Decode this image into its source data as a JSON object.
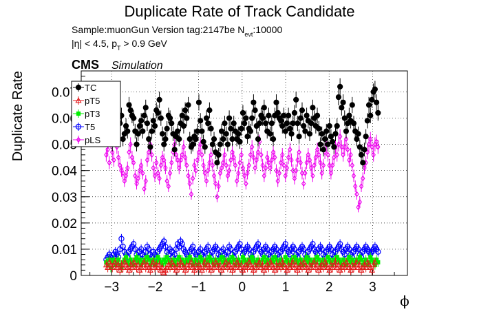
{
  "chart_data": {
    "type": "scatter",
    "title": "Duplicate Rate of Track Candidate",
    "info": {
      "sample_line_prefix": "Sample:muonGun   Version tag:2147be  N",
      "sample_line_subscript": "evt",
      "sample_line_suffix": ":10000",
      "cut_line_prefix": "|η| < 4.5, p",
      "cut_line_subscript": "T",
      "cut_line_suffix": " > 0.9 GeV"
    },
    "cms_label": "CMS",
    "simulation_label": "Simulation",
    "xlabel": "ϕ",
    "ylabel": "Duplicate Rate",
    "xlim": [
      -3.7,
      3.8
    ],
    "ylim": [
      0,
      0.078
    ],
    "x_ticks": [
      -3,
      -2,
      -1,
      0,
      1,
      2,
      3
    ],
    "x_tick_labels": [
      "−3",
      "−2",
      "−1",
      "0",
      "1",
      "2",
      "3"
    ],
    "y_ticks": [
      0,
      0.01,
      0.02,
      0.03,
      0.04,
      0.05,
      0.06,
      0.07
    ],
    "y_tick_labels": [
      "0",
      "0.01",
      "0.02",
      "0.03",
      "0.04",
      "0.05",
      "0.06",
      "0.07"
    ],
    "grid": true,
    "legend_placement": "top-left",
    "n_bins": 180,
    "series": [
      {
        "name": "TC",
        "color": "#000000",
        "marker": "filled-circle",
        "values": [
          0.054,
          0.058,
          0.057,
          0.055,
          0.05,
          0.059,
          0.062,
          0.064,
          0.06,
          0.058,
          0.061,
          0.052,
          0.054,
          0.057,
          0.055,
          0.065,
          0.063,
          0.061,
          0.06,
          0.055,
          0.05,
          0.054,
          0.057,
          0.059,
          0.055,
          0.061,
          0.064,
          0.058,
          0.052,
          0.049,
          0.055,
          0.059,
          0.057,
          0.063,
          0.062,
          0.067,
          0.06,
          0.054,
          0.05,
          0.052,
          0.056,
          0.061,
          0.06,
          0.058,
          0.054,
          0.048,
          0.053,
          0.055,
          0.052,
          0.058,
          0.061,
          0.057,
          0.063,
          0.06,
          0.065,
          0.052,
          0.049,
          0.05,
          0.053,
          0.052,
          0.055,
          0.066,
          0.059,
          0.055,
          0.051,
          0.049,
          0.06,
          0.058,
          0.063,
          0.056,
          0.05,
          0.052,
          0.047,
          0.043,
          0.046,
          0.05,
          0.055,
          0.052,
          0.058,
          0.054,
          0.05,
          0.06,
          0.056,
          0.052,
          0.058,
          0.055,
          0.052,
          0.054,
          0.051,
          0.056,
          0.062,
          0.058,
          0.06,
          0.053,
          0.056,
          0.055,
          0.06,
          0.066,
          0.063,
          0.057,
          0.052,
          0.058,
          0.061,
          0.06,
          0.064,
          0.058,
          0.055,
          0.061,
          0.054,
          0.058,
          0.052,
          0.061,
          0.066,
          0.062,
          0.06,
          0.059,
          0.057,
          0.061,
          0.055,
          0.058,
          0.061,
          0.056,
          0.054,
          0.058,
          0.062,
          0.067,
          0.058,
          0.053,
          0.06,
          0.063,
          0.057,
          0.055,
          0.061,
          0.059,
          0.054,
          0.058,
          0.064,
          0.06,
          0.057,
          0.061,
          0.056,
          0.05,
          0.054,
          0.048,
          0.052,
          0.055,
          0.05,
          0.057,
          0.053,
          0.051,
          0.049,
          0.054,
          0.057,
          0.068,
          0.072,
          0.064,
          0.066,
          0.06,
          0.055,
          0.058,
          0.061,
          0.059,
          0.065,
          0.058,
          0.055,
          0.052,
          0.054,
          0.049,
          0.046,
          0.043,
          0.048,
          0.053,
          0.059,
          0.065,
          0.061,
          0.067,
          0.07,
          0.071,
          0.066,
          0.062
        ]
      },
      {
        "name": "pT5",
        "color": "#e31a1c",
        "marker": "open-triangle",
        "values": [
          0.004,
          0.003,
          0.005,
          0.004,
          0.003,
          0.004,
          0.005,
          0.003,
          0.004,
          0.002,
          0.004,
          0.003,
          0.005,
          0.004,
          0.003,
          0.002,
          0.004,
          0.003,
          0.005,
          0.004,
          0.003,
          0.004,
          0.002,
          0.003,
          0.004,
          0.005,
          0.003,
          0.004,
          0.003,
          0.002,
          0.004,
          0.005,
          0.003,
          0.004,
          0.003,
          0.004,
          0.002,
          0.003,
          0.001,
          0.002,
          0.003,
          0.004,
          0.003,
          0.005,
          0.004,
          0.003,
          0.002,
          0.004,
          0.003,
          0.005,
          0.004,
          0.003,
          0.002,
          0.004,
          0.003,
          0.004,
          0.005,
          0.003,
          0.002,
          0.004,
          0.003,
          0.004,
          0.003,
          0.002,
          0.004,
          0.005,
          0.003,
          0.004,
          0.003,
          0.002,
          0.004,
          0.003,
          0.005,
          0.004,
          0.003,
          0.004,
          0.002,
          0.003,
          0.004,
          0.005,
          0.003,
          0.004,
          0.003,
          0.002,
          0.004,
          0.003,
          0.005,
          0.004,
          0.003,
          0.004,
          0.002,
          0.003,
          0.004,
          0.003,
          0.005,
          0.004,
          0.003,
          0.002,
          0.004,
          0.003,
          0.004,
          0.005,
          0.003,
          0.004,
          0.002,
          0.003,
          0.004,
          0.003,
          0.005,
          0.004,
          0.003,
          0.002,
          0.004,
          0.003,
          0.004,
          0.003,
          0.005,
          0.004,
          0.003,
          0.002,
          0.004,
          0.003,
          0.004,
          0.005,
          0.003,
          0.004,
          0.002,
          0.003,
          0.004,
          0.003,
          0.005,
          0.004,
          0.003,
          0.002,
          0.004,
          0.003,
          0.004,
          0.005,
          0.003,
          0.004,
          0.002,
          0.003,
          0.004,
          0.003,
          0.005,
          0.004,
          0.003,
          0.002,
          0.004,
          0.003,
          0.004,
          0.005,
          0.003,
          0.004,
          0.002,
          0.003,
          0.004,
          0.003,
          0.005,
          0.004,
          0.003,
          0.002,
          0.004,
          0.003,
          0.004,
          0.005,
          0.003,
          0.004,
          0.002,
          0.003,
          0.004,
          0.003,
          0.005,
          0.004,
          0.003,
          0.002,
          0.004,
          0.005
        ]
      },
      {
        "name": "pT3",
        "color": "#00ee00",
        "marker": "filled-square",
        "values": [
          0.005,
          0.004,
          0.006,
          0.003,
          0.005,
          0.006,
          0.004,
          0.005,
          0.006,
          0.004,
          0.003,
          0.005,
          0.006,
          0.007,
          0.005,
          0.004,
          0.006,
          0.005,
          0.004,
          0.006,
          0.007,
          0.005,
          0.006,
          0.004,
          0.005,
          0.006,
          0.005,
          0.007,
          0.006,
          0.004,
          0.005,
          0.006,
          0.004,
          0.005,
          0.007,
          0.006,
          0.005,
          0.004,
          0.006,
          0.005,
          0.007,
          0.006,
          0.005,
          0.004,
          0.006,
          0.005,
          0.004,
          0.006,
          0.007,
          0.005,
          0.006,
          0.004,
          0.005,
          0.006,
          0.005,
          0.007,
          0.006,
          0.004,
          0.005,
          0.006,
          0.004,
          0.005,
          0.007,
          0.006,
          0.005,
          0.004,
          0.006,
          0.005,
          0.007,
          0.006,
          0.005,
          0.004,
          0.006,
          0.005,
          0.004,
          0.006,
          0.007,
          0.005,
          0.006,
          0.004,
          0.005,
          0.006,
          0.005,
          0.007,
          0.006,
          0.004,
          0.005,
          0.006,
          0.004,
          0.005,
          0.007,
          0.006,
          0.005,
          0.004,
          0.006,
          0.005,
          0.007,
          0.006,
          0.005,
          0.004,
          0.006,
          0.005,
          0.004,
          0.006,
          0.007,
          0.005,
          0.006,
          0.004,
          0.005,
          0.006,
          0.005,
          0.007,
          0.006,
          0.004,
          0.005,
          0.006,
          0.004,
          0.005,
          0.007,
          0.006,
          0.005,
          0.004,
          0.006,
          0.005,
          0.007,
          0.006,
          0.005,
          0.004,
          0.006,
          0.005,
          0.004,
          0.006,
          0.007,
          0.005,
          0.006,
          0.004,
          0.005,
          0.006,
          0.005,
          0.007,
          0.006,
          0.004,
          0.005,
          0.006,
          0.004,
          0.005,
          0.007,
          0.006,
          0.005,
          0.004,
          0.006,
          0.005,
          0.007,
          0.006,
          0.005,
          0.004,
          0.006,
          0.005,
          0.004,
          0.006,
          0.007,
          0.005,
          0.006,
          0.004,
          0.005,
          0.006,
          0.005,
          0.007,
          0.006,
          0.004,
          0.005,
          0.006,
          0.004,
          0.005,
          0.007,
          0.006,
          0.005,
          0.004,
          0.006,
          0.005
        ]
      },
      {
        "name": "T5",
        "color": "#0000ff",
        "marker": "open-circle",
        "values": [
          0.006,
          0.007,
          0.008,
          0.007,
          0.006,
          0.008,
          0.009,
          0.008,
          0.007,
          0.01,
          0.014,
          0.011,
          0.009,
          0.008,
          0.007,
          0.009,
          0.01,
          0.011,
          0.012,
          0.01,
          0.008,
          0.007,
          0.009,
          0.01,
          0.008,
          0.007,
          0.009,
          0.011,
          0.01,
          0.008,
          0.007,
          0.009,
          0.008,
          0.007,
          0.009,
          0.01,
          0.011,
          0.012,
          0.013,
          0.011,
          0.009,
          0.008,
          0.01,
          0.009,
          0.007,
          0.008,
          0.01,
          0.012,
          0.011,
          0.013,
          0.012,
          0.01,
          0.009,
          0.008,
          0.007,
          0.009,
          0.01,
          0.011,
          0.009,
          0.008,
          0.007,
          0.009,
          0.01,
          0.008,
          0.007,
          0.009,
          0.01,
          0.011,
          0.008,
          0.007,
          0.009,
          0.01,
          0.011,
          0.01,
          0.008,
          0.007,
          0.009,
          0.01,
          0.008,
          0.007,
          0.009,
          0.011,
          0.01,
          0.008,
          0.007,
          0.009,
          0.01,
          0.011,
          0.012,
          0.01,
          0.008,
          0.009,
          0.01,
          0.011,
          0.01,
          0.008,
          0.007,
          0.009,
          0.01,
          0.011,
          0.012,
          0.01,
          0.009,
          0.008,
          0.01,
          0.011,
          0.01,
          0.008,
          0.007,
          0.009,
          0.01,
          0.011,
          0.01,
          0.008,
          0.007,
          0.009,
          0.01,
          0.011,
          0.012,
          0.01,
          0.009,
          0.008,
          0.01,
          0.011,
          0.01,
          0.008,
          0.007,
          0.009,
          0.01,
          0.011,
          0.01,
          0.008,
          0.007,
          0.009,
          0.01,
          0.011,
          0.012,
          0.01,
          0.009,
          0.008,
          0.01,
          0.011,
          0.01,
          0.008,
          0.007,
          0.009,
          0.01,
          0.011,
          0.01,
          0.008,
          0.007,
          0.009,
          0.01,
          0.011,
          0.012,
          0.01,
          0.009,
          0.008,
          0.01,
          0.011,
          0.01,
          0.008,
          0.007,
          0.009,
          0.01,
          0.011,
          0.01,
          0.008,
          0.007,
          0.009,
          0.01,
          0.011,
          0.01,
          0.009,
          0.008,
          0.009,
          0.01,
          0.011,
          0.01,
          0.009
        ]
      },
      {
        "name": "pLS",
        "color": "#ee00ee",
        "marker": "open-diamond",
        "values": [
          0.046,
          0.048,
          0.043,
          0.051,
          0.047,
          0.044,
          0.052,
          0.049,
          0.045,
          0.042,
          0.04,
          0.039,
          0.036,
          0.038,
          0.041,
          0.047,
          0.05,
          0.045,
          0.043,
          0.038,
          0.035,
          0.037,
          0.04,
          0.042,
          0.039,
          0.033,
          0.036,
          0.044,
          0.047,
          0.05,
          0.046,
          0.041,
          0.038,
          0.043,
          0.039,
          0.037,
          0.042,
          0.045,
          0.044,
          0.041,
          0.036,
          0.034,
          0.039,
          0.043,
          0.047,
          0.05,
          0.046,
          0.044,
          0.041,
          0.044,
          0.046,
          0.049,
          0.045,
          0.042,
          0.038,
          0.035,
          0.031,
          0.037,
          0.042,
          0.04,
          0.044,
          0.047,
          0.05,
          0.046,
          0.042,
          0.039,
          0.036,
          0.04,
          0.043,
          0.046,
          0.042,
          0.038,
          0.035,
          0.03,
          0.034,
          0.039,
          0.041,
          0.043,
          0.046,
          0.042,
          0.038,
          0.04,
          0.044,
          0.047,
          0.045,
          0.042,
          0.036,
          0.039,
          0.043,
          0.046,
          0.041,
          0.038,
          0.035,
          0.039,
          0.042,
          0.046,
          0.049,
          0.045,
          0.041,
          0.044,
          0.047,
          0.051,
          0.046,
          0.042,
          0.038,
          0.041,
          0.045,
          0.043,
          0.041,
          0.044,
          0.047,
          0.045,
          0.04,
          0.036,
          0.039,
          0.043,
          0.046,
          0.042,
          0.038,
          0.041,
          0.045,
          0.048,
          0.044,
          0.04,
          0.037,
          0.04,
          0.044,
          0.047,
          0.043,
          0.039,
          0.035,
          0.039,
          0.043,
          0.046,
          0.044,
          0.041,
          0.038,
          0.042,
          0.045,
          0.048,
          0.046,
          0.043,
          0.039,
          0.042,
          0.047,
          0.05,
          0.046,
          0.042,
          0.039,
          0.042,
          0.045,
          0.049,
          0.046,
          0.05,
          0.053,
          0.049,
          0.046,
          0.049,
          0.052,
          0.048,
          0.044,
          0.046,
          0.042,
          0.038,
          0.034,
          0.031,
          0.026,
          0.028,
          0.034,
          0.037,
          0.041,
          0.043,
          0.047,
          0.05,
          0.052,
          0.049,
          0.046,
          0.05,
          0.051,
          0.049
        ]
      }
    ]
  }
}
